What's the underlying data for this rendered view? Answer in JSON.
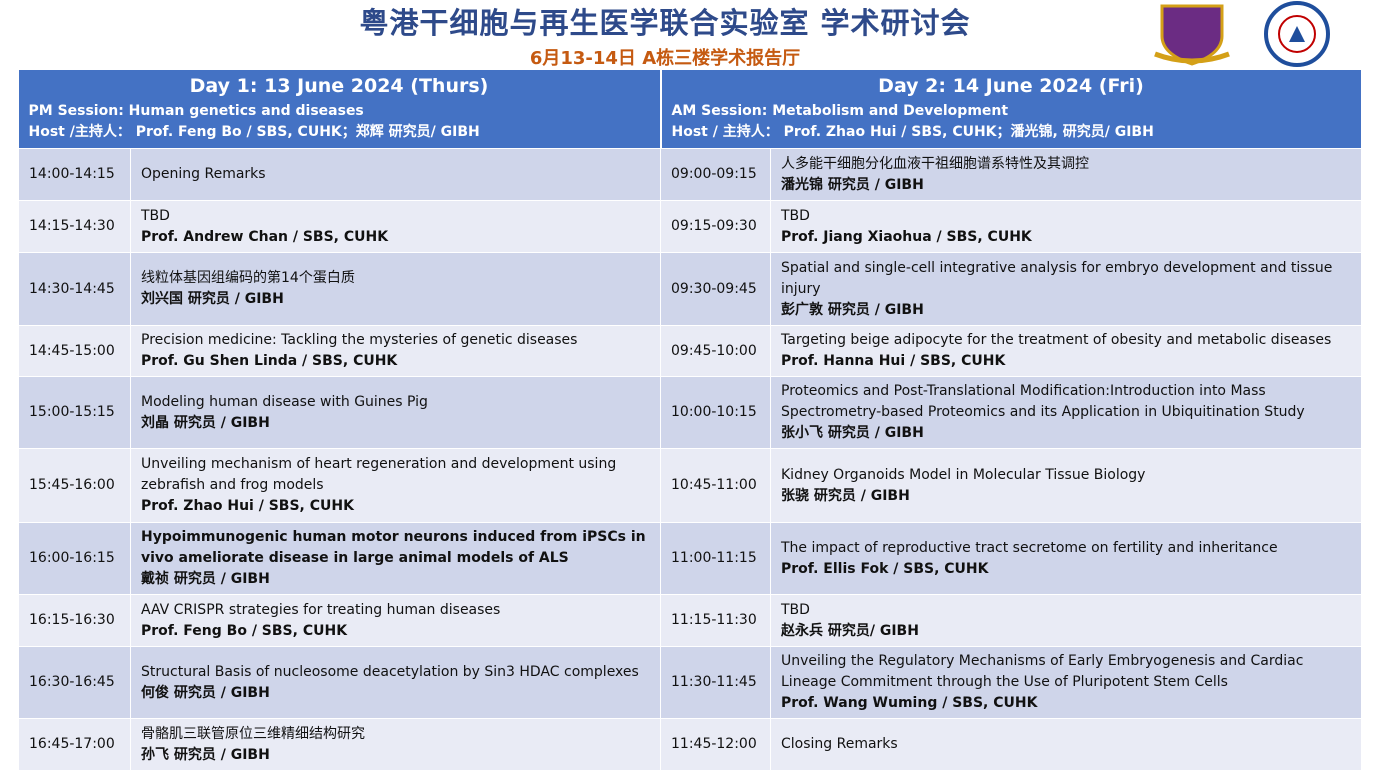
{
  "header": {
    "title": "粤港干细胞与再生医学联合实验室 学术研讨会",
    "subtitle": "6月13-14日   A栋三楼学术报告厅"
  },
  "days": [
    {
      "title": "Day 1: 13 June 2024 (Thurs)",
      "session": "PM Session: Human genetics and diseases",
      "host": "Host /主持人： Prof. Feng Bo / SBS, CUHK；郑辉 研究员/ GIBH"
    },
    {
      "title": "Day 2: 14 June 2024 (Fri)",
      "session": "AM Session:  Metabolism and Development",
      "host": "Host / 主持人： Prof. Zhao Hui / SBS, CUHK；潘光锦, 研究员/ GIBH"
    }
  ],
  "rows": [
    {
      "left": {
        "time": "14:00-14:15",
        "title": "Opening Remarks"
      },
      "right": {
        "time": "09:00-09:15",
        "title": "人多能干细胞分化血液干祖细胞谱系特性及其调控",
        "speaker": "潘光锦 研究员 / GIBH"
      }
    },
    {
      "left": {
        "time": "14:15-14:30",
        "title": "TBD",
        "speaker": "Prof. Andrew Chan / SBS, CUHK"
      },
      "right": {
        "time": "09:15-09:30",
        "title": "TBD",
        "speaker": "Prof.  Jiang Xiaohua / SBS, CUHK"
      }
    },
    {
      "left": {
        "time": "14:30-14:45",
        "title": "线粒体基因组编码的第14个蛋白质",
        "speaker": "刘兴国 研究员 / GIBH"
      },
      "right": {
        "time": "09:30-09:45",
        "title": "Spatial and single-cell integrative analysis for embryo development and tissue injury",
        "speaker": "彭广敦 研究员 / GIBH"
      }
    },
    {
      "left": {
        "time": "14:45-15:00",
        "title": "Precision medicine: Tackling the mysteries of genetic diseases",
        "speaker": "Prof. Gu Shen Linda / SBS, CUHK"
      },
      "right": {
        "time": "09:45-10:00",
        "title": "Targeting beige adipocyte for the treatment of obesity and metabolic diseases",
        "speaker": "Prof. Hanna Hui / SBS, CUHK"
      }
    },
    {
      "left": {
        "time": "15:00-15:15",
        "title": "Modeling human disease with Guines Pig",
        "speaker": "刘晶 研究员 / GIBH"
      },
      "right": {
        "time": "10:00-10:15",
        "title": "Proteomics and Post-Translational Modification:Introduction into Mass Spectrometry-based Proteomics and its Application in Ubiquitination Study",
        "speaker": "张小飞 研究员 / GIBH"
      }
    },
    {
      "left": {
        "time": "15:45-16:00",
        "title": "Unveiling mechanism of heart regeneration and development using zebrafish and frog models",
        "speaker": "Prof. Zhao Hui / SBS, CUHK"
      },
      "right": {
        "time": "10:45-11:00",
        "title": "Kidney Organoids Model in Molecular Tissue Biology",
        "speaker": "张骁 研究员 / GIBH"
      }
    },
    {
      "left": {
        "time": "16:00-16:15",
        "title": "Hypoimmunogenic human motor neurons induced from iPSCs in vivo ameliorate disease in large animal models of ALS",
        "title_bold": true,
        "speaker": "戴祯 研究员 / GIBH"
      },
      "right": {
        "time": "11:00-11:15",
        "title": "The impact of reproductive tract secretome on fertility and inheritance",
        "speaker": "Prof. Ellis Fok / SBS, CUHK"
      }
    },
    {
      "left": {
        "time": "16:15-16:30",
        "title": "AAV CRISPR strategies for treating human diseases",
        "speaker": "Prof. Feng Bo / SBS, CUHK"
      },
      "right": {
        "time": "11:15-11:30",
        "title": "TBD",
        "speaker": "赵永兵  研究员/ GIBH"
      }
    },
    {
      "left": {
        "time": "16:30-16:45",
        "title": "Structural Basis of nucleosome deacetylation by Sin3 HDAC complexes",
        "speaker": "何俊 研究员 / GIBH"
      },
      "right": {
        "time": "11:30-11:45",
        "title": "Unveiling the Regulatory Mechanisms of Early Embryogenesis and Cardiac Lineage Commitment through the Use of Pluripotent Stem Cells",
        "speaker": "Prof. Wang Wuming / SBS, CUHK"
      }
    },
    {
      "left": {
        "time": "16:45-17:00",
        "title": "骨骼肌三联管原位三维精细结构研究",
        "speaker": "孙飞  研究员 / GIBH"
      },
      "right": {
        "time": "11:45-12:00",
        "title": "Closing Remarks"
      }
    }
  ]
}
